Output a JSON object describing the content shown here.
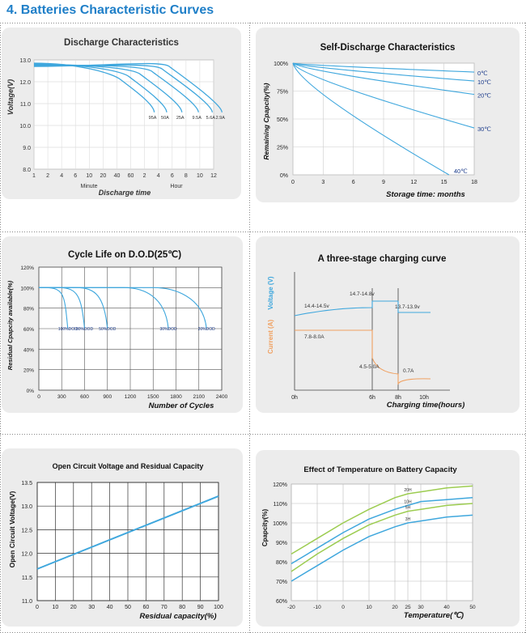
{
  "page": {
    "heading": "4.  Batteries Characteristic Curves"
  },
  "chart_data": [
    {
      "type": "line",
      "title": "Discharge Characteristics",
      "xlabel": "Discharge time",
      "ylabel": "Voltage(V)",
      "xgroups": [
        "Minute",
        "Hour"
      ],
      "xticks": [
        "1",
        "2",
        "4",
        "6",
        "10",
        "20",
        "40",
        "60",
        "2",
        "4",
        "6",
        "8",
        "10",
        "12"
      ],
      "yticks": [
        "13.0",
        "12.0",
        "11.0",
        "10.0",
        "9.0",
        "8.0"
      ],
      "ylim": [
        8.0,
        13.0
      ],
      "grid": true,
      "series": [
        {
          "name": "95A",
          "end_x_index": 8.7
        },
        {
          "name": "50A",
          "end_x_index": 9.6
        },
        {
          "name": "25A",
          "end_x_index": 10.7
        },
        {
          "name": "9.5A",
          "end_x_index": 11.9
        },
        {
          "name": "5.6A",
          "end_x_index": 12.9
        },
        {
          "name": "2.9A",
          "end_x_index": 13.6
        }
      ]
    },
    {
      "type": "line",
      "title": "Self-Discharge Characteristics",
      "xlabel": "Storage time: months",
      "ylabel": "Remaining Cpapcity(%)",
      "xticks": [
        "0",
        "3",
        "6",
        "9",
        "12",
        "15",
        "18"
      ],
      "yticks": [
        "100%",
        "75%",
        "50%",
        "25%",
        "0%"
      ],
      "xlim": [
        0,
        18
      ],
      "ylim": [
        0,
        100
      ],
      "grid": true,
      "series": [
        {
          "name": "0℃",
          "x": [
            0,
            18
          ],
          "y": [
            100,
            92
          ]
        },
        {
          "name": "10℃",
          "x": [
            0,
            18
          ],
          "y": [
            100,
            84
          ]
        },
        {
          "name": "20℃",
          "x": [
            0,
            18
          ],
          "y": [
            100,
            72
          ]
        },
        {
          "name": "30℃",
          "x": [
            0,
            18
          ],
          "y": [
            100,
            42
          ]
        },
        {
          "name": "40℃",
          "x": [
            0,
            15.5
          ],
          "y": [
            100,
            0
          ]
        }
      ]
    },
    {
      "type": "line",
      "title": "Cycle Life on D.O.D(25℃)",
      "xlabel": "Number of Cycles",
      "ylabel": "Residual Cpapcity available(%)",
      "xticks": [
        "0",
        "300",
        "600",
        "900",
        "1200",
        "1500",
        "1800",
        "2100",
        "2400"
      ],
      "yticks": [
        "120%",
        "100%",
        "80%",
        "60%",
        "40%",
        "20%",
        "0%"
      ],
      "xlim": [
        0,
        2400
      ],
      "ylim": [
        0,
        120
      ],
      "grid": true,
      "series": [
        {
          "name": "100%DOD",
          "end_cycles": 380
        },
        {
          "name": "80%DOD",
          "end_cycles": 600
        },
        {
          "name": "50%DOD",
          "end_cycles": 900
        },
        {
          "name": "30%DOD",
          "end_cycles": 1700
        },
        {
          "name": "20%DOD",
          "end_cycles": 2200
        }
      ]
    },
    {
      "type": "line",
      "title": "A three-stage charging curve",
      "xlabel": "Charging time(hours)",
      "ylabel_voltage": "Voltage (V)",
      "ylabel_current": "Current (A)",
      "xticks": [
        "0h",
        "6h",
        "8h",
        "10h"
      ],
      "annotations": [
        "14.4-14.5v",
        "14.7-14.8v",
        "13.7-13.9v",
        "7.8-8.0A",
        "4.5-5.0A",
        "0.7A"
      ],
      "colors": {
        "voltage": "#3fa7dd",
        "current": "#f0a060"
      }
    },
    {
      "type": "line",
      "title": "Open Circuit Voltage and Residual Capacity",
      "xlabel": "Residual capacity(%)",
      "ylabel": "Open Circuit Voltage(V)",
      "xticks": [
        "0",
        "10",
        "20",
        "30",
        "40",
        "50",
        "60",
        "70",
        "80",
        "90",
        "100"
      ],
      "yticks": [
        "13.5",
        "13.0",
        "12.5",
        "12.0",
        "11.5",
        "11.0"
      ],
      "xlim": [
        0,
        100
      ],
      "ylim": [
        11.0,
        13.5
      ],
      "grid": true,
      "series": [
        {
          "x": [
            0,
            100
          ],
          "y": [
            11.67,
            13.21
          ]
        }
      ]
    },
    {
      "type": "line",
      "title": "Effect of Temperature on Battery Capacity",
      "xlabel": "Temperature(℃)",
      "ylabel": "Cpapcity(%)",
      "xticks": [
        "-20",
        "-10",
        "0",
        "10",
        "20",
        "25",
        "30",
        "40",
        "50"
      ],
      "yticks": [
        "120%",
        "110%",
        "100%",
        "90%",
        "80%",
        "70%",
        "60%"
      ],
      "xlim": [
        -20,
        50
      ],
      "ylim": [
        60,
        120
      ],
      "grid": true,
      "series": [
        {
          "name": "20H",
          "x": [
            -20,
            -10,
            0,
            10,
            20,
            25,
            30,
            40,
            50
          ],
          "y": [
            84,
            92,
            100,
            107,
            113,
            115,
            116,
            118,
            119
          ]
        },
        {
          "name": "10H",
          "x": [
            -20,
            -10,
            0,
            10,
            20,
            25,
            30,
            40,
            50
          ],
          "y": [
            79,
            87,
            95,
            102,
            107,
            109,
            111,
            112,
            113
          ]
        },
        {
          "name": "5H",
          "x": [
            -20,
            -10,
            0,
            10,
            20,
            25,
            30,
            40,
            50
          ],
          "y": [
            75,
            84,
            92,
            99,
            104,
            106,
            107,
            109,
            110
          ]
        },
        {
          "name": "3H",
          "x": [
            -20,
            -10,
            0,
            10,
            20,
            25,
            30,
            40,
            50
          ],
          "y": [
            70,
            78,
            86,
            93,
            98,
            100,
            101,
            103,
            104
          ]
        }
      ],
      "colors": {
        "20H": "#9ccc50",
        "10H": "#3fa7dd",
        "5H": "#9ccc50",
        "3H": "#3fa7dd"
      }
    }
  ]
}
